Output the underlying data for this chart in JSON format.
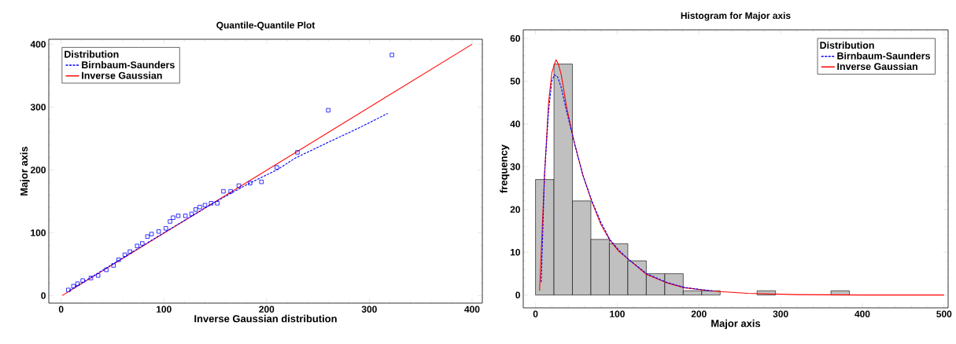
{
  "chart_data": [
    {
      "type": "scatter",
      "title": "Quantile-Quantile Plot",
      "xlabel": "Inverse Gaussian distribution",
      "ylabel": "Major axis",
      "legend_title": "Distribution",
      "legend": "top left",
      "grid": false,
      "xlim": [
        -12,
        410
      ],
      "ylim": [
        -12,
        408
      ],
      "xticks": [
        0,
        100,
        200,
        300,
        400
      ],
      "yticks": [
        0,
        100,
        200,
        300,
        400
      ],
      "series": [
        {
          "type": "scatter",
          "marker": "square",
          "color": "#0000ff",
          "x": [
            7,
            12,
            16,
            21,
            29,
            36,
            44,
            51,
            56,
            62,
            67,
            74,
            79,
            84,
            88,
            95,
            102,
            106,
            109,
            114,
            121,
            127,
            131,
            135,
            140,
            146,
            152,
            158,
            165,
            173,
            184,
            195,
            210,
            230,
            260,
            322
          ],
          "values": [
            9,
            15,
            19,
            24,
            28,
            32,
            41,
            48,
            57,
            65,
            70,
            79,
            83,
            94,
            98,
            102,
            107,
            118,
            124,
            127,
            127,
            130,
            137,
            141,
            144,
            147,
            147,
            166,
            166,
            175,
            179,
            181,
            204,
            228,
            295,
            383
          ]
        },
        {
          "type": "line",
          "name": "Birnbaum-Saunders",
          "color": "#0000ff",
          "line_style": "dashed",
          "marker": "none",
          "x": [
            8,
            50,
            100,
            150,
            180,
            211,
            228,
            260,
            290,
            318
          ],
          "values": [
            8,
            50,
            100,
            149,
            176,
            201,
            219,
            244,
            267,
            290
          ]
        },
        {
          "type": "line",
          "name": "Inverse Gaussian",
          "color": "#ff0000",
          "line_style": "solid",
          "marker": "none",
          "x": [
            1,
            400
          ],
          "values": [
            0,
            400
          ]
        }
      ]
    },
    {
      "type": "histogram",
      "title": "Histogram for Major axis",
      "xlabel": "Major axis",
      "ylabel": "frequency",
      "legend_title": "Distribution",
      "legend": "top right",
      "grid": false,
      "xlim": [
        -15,
        505
      ],
      "ylim": [
        -3,
        62
      ],
      "xticks": [
        0,
        100,
        200,
        300,
        400,
        500
      ],
      "yticks": [
        0,
        10,
        20,
        30,
        40,
        50,
        60
      ],
      "bins": [
        0,
        22.6,
        45.2,
        67.8,
        90.4,
        113,
        135.6,
        158.2,
        180.8,
        203.4,
        226,
        248.6,
        271.2,
        293.8,
        316.4,
        339,
        361.6,
        384.2
      ],
      "values": [
        27,
        54,
        22,
        13,
        12,
        8,
        5,
        5,
        1,
        1,
        0,
        0,
        1,
        0,
        0,
        0,
        1
      ],
      "color": "#c0c0c0",
      "series": [
        {
          "type": "line",
          "name": "Birnbaum-Saunders",
          "color": "#0000ff",
          "line_style": "dashed",
          "marker": "none",
          "x": [
            7,
            11,
            16,
            20,
            23,
            27,
            31.5,
            38,
            47,
            58,
            69,
            80,
            91,
            102,
            114,
            136,
            160,
            182,
            218
          ],
          "values": [
            3,
            28,
            43,
            50,
            51.5,
            51,
            48.5,
            43,
            36,
            28,
            22,
            17,
            13,
            10.5,
            8.3,
            5,
            3,
            1.8,
            0.9
          ]
        },
        {
          "type": "line",
          "name": "Inverse Gaussian",
          "color": "#ff0000",
          "line_style": "solid",
          "marker": "none",
          "x": [
            5,
            11,
            16,
            20,
            25,
            28,
            31.5,
            38,
            47,
            58,
            69,
            80,
            91,
            102,
            114,
            136,
            160,
            182,
            218,
            260,
            320,
            400,
            500
          ],
          "values": [
            1,
            28,
            45,
            52,
            55,
            54,
            51.5,
            44,
            36,
            28,
            21.8,
            16.5,
            12.8,
            10.2,
            8.3,
            4.8,
            2.9,
            1.7,
            0.9,
            0.4,
            0.1,
            0,
            0
          ]
        }
      ]
    }
  ]
}
